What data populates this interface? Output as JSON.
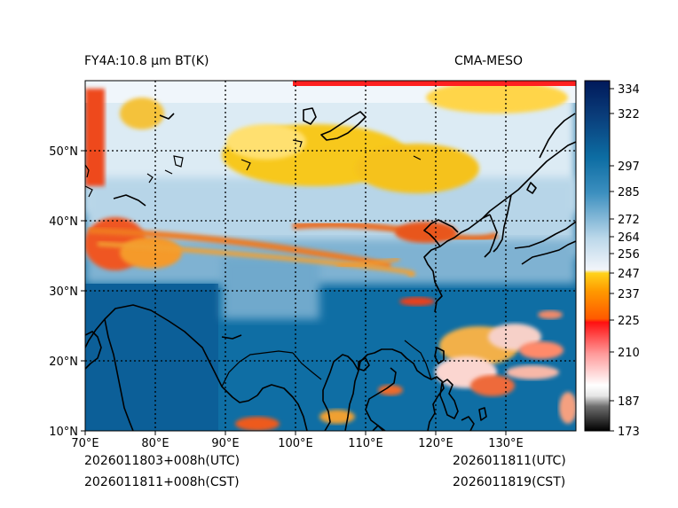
{
  "header": {
    "product_title": "FY4A:10.8 μm BT(K)",
    "model_name": "CMA-MESO"
  },
  "footer": {
    "init_utc": "2026011803+008h(UTC)",
    "init_cst": "2026011811+008h(CST)",
    "valid_utc": "2026011811(UTC)",
    "valid_cst": "2026011819(CST)"
  },
  "map": {
    "lon_range": [
      70,
      140
    ],
    "lat_range": [
      10,
      60
    ],
    "lon_ticks": [
      "70°E",
      "80°E",
      "90°E",
      "100°E",
      "110°E",
      "120°E",
      "130°E"
    ],
    "lat_ticks": [
      "10°N",
      "20°N",
      "30°N",
      "40°N",
      "50°N"
    ]
  },
  "colorbar": {
    "min": 173,
    "max": 340,
    "ticks": [
      "334",
      "322",
      "297",
      "285",
      "272",
      "264",
      "256",
      "247",
      "237",
      "225",
      "210",
      "187",
      "173"
    ],
    "colors": {
      "cold_black": "#000000",
      "gray": "#9a9a9a",
      "red": "#ff1010",
      "orange": "#ff8a00",
      "yellow": "#ffd21a",
      "light_blue": "#cfe4f0",
      "mid_blue": "#1a82b0",
      "navy": "#00195a"
    }
  }
}
